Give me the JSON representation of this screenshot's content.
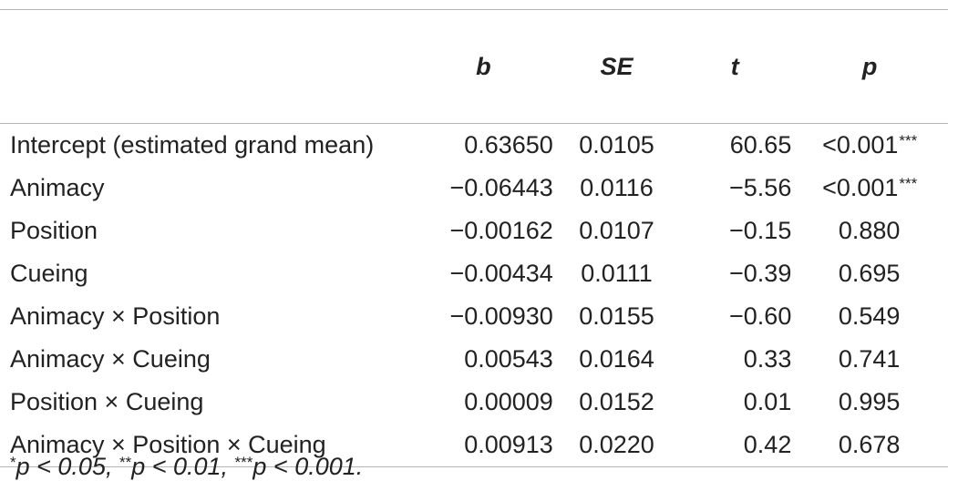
{
  "table": {
    "headers": [
      "",
      "b",
      "SE",
      "t",
      "p"
    ],
    "rows": [
      {
        "label": "Intercept (estimated grand mean)",
        "b": "0.63650",
        "se": "0.0105",
        "t": "60.65",
        "p": "<0.001",
        "sig": "***"
      },
      {
        "label": "Animacy",
        "b": "−0.06443",
        "se": "0.0116",
        "t": "−5.56",
        "p": "<0.001",
        "sig": "***"
      },
      {
        "label": "Position",
        "b": "−0.00162",
        "se": "0.0107",
        "t": "−0.15",
        "p": "0.880",
        "sig": ""
      },
      {
        "label": "Cueing",
        "b": "−0.00434",
        "se": "0.0111",
        "t": "−0.39",
        "p": "0.695",
        "sig": ""
      },
      {
        "label": "Animacy × Position",
        "b": "−0.00930",
        "se": "0.0155",
        "t": "−0.60",
        "p": "0.549",
        "sig": ""
      },
      {
        "label": "Animacy × Cueing",
        "b": "0.00543",
        "se": "0.0164",
        "t": "0.33",
        "p": "0.741",
        "sig": ""
      },
      {
        "label": "Position × Cueing",
        "b": "0.00009",
        "se": "0.0152",
        "t": "0.01",
        "p": "0.995",
        "sig": ""
      },
      {
        "label": "Animacy × Position × Cueing",
        "b": "0.00913",
        "se": "0.0220",
        "t": "0.42",
        "p": "0.678",
        "sig": ""
      }
    ]
  },
  "footnote": {
    "parts": [
      {
        "sup": "*",
        "text": "p < 0.05, "
      },
      {
        "sup": "**",
        "text": "p < 0.01, "
      },
      {
        "sup": "***",
        "text": "p < 0.001."
      }
    ]
  }
}
